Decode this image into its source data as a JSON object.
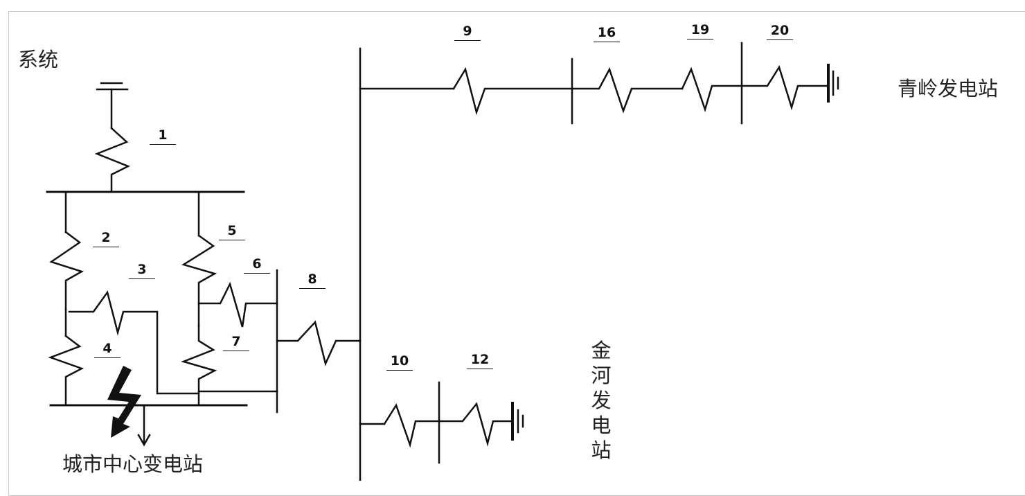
{
  "labels": {
    "system": "系统",
    "city_substation": "城市中心变电站",
    "qingling_station": "青岭发电站",
    "jinhe_station": "金河发电站"
  },
  "elements": {
    "e1": "1",
    "e2": "2",
    "e3": "3",
    "e4": "4",
    "e5": "5",
    "e6": "6",
    "e7": "7",
    "e8": "8",
    "e9": "9",
    "e10": "10",
    "e12": "12",
    "e16": "16",
    "e19": "19",
    "e20": "20"
  },
  "colors": {
    "line": "#111111",
    "frame": "#c8c8c8"
  }
}
